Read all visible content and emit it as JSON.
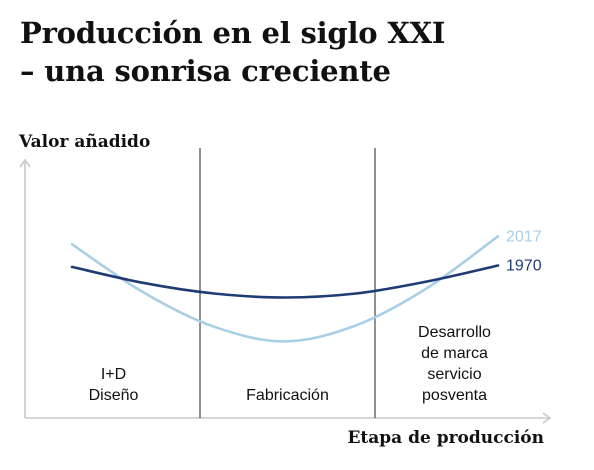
{
  "title_line1": "Producción en el siglo XXI",
  "title_line2": "– una sonrisa creciente",
  "chart_data": {
    "type": "line",
    "title": "Producción en el siglo XXI – una sonrisa creciente",
    "ylabel": "Valor añadido",
    "xlabel": "Etapa de producción",
    "stages": [
      {
        "lines": [
          "I+D",
          "Diseño"
        ]
      },
      {
        "lines": [
          "Fabricación"
        ]
      },
      {
        "lines": [
          "Desarrollo",
          "de marca",
          "servicio",
          "posventa"
        ]
      }
    ],
    "series": [
      {
        "name": "2017",
        "color": "#a9cfe6",
        "x": [
          0,
          0.5,
          1.0,
          1.5,
          2.0,
          2.5,
          3.0
        ],
        "y": [
          0.78,
          0.42,
          0.16,
          0.05,
          0.17,
          0.45,
          0.84
        ]
      },
      {
        "name": "1970",
        "color": "#1f3b73",
        "x": [
          0,
          0.5,
          1.0,
          1.5,
          2.0,
          2.5,
          3.0
        ],
        "y": [
          0.61,
          0.49,
          0.41,
          0.38,
          0.41,
          0.5,
          0.62
        ]
      }
    ],
    "grid": false,
    "axis_color": "#c8c8c8",
    "divider_color": "#222222"
  }
}
